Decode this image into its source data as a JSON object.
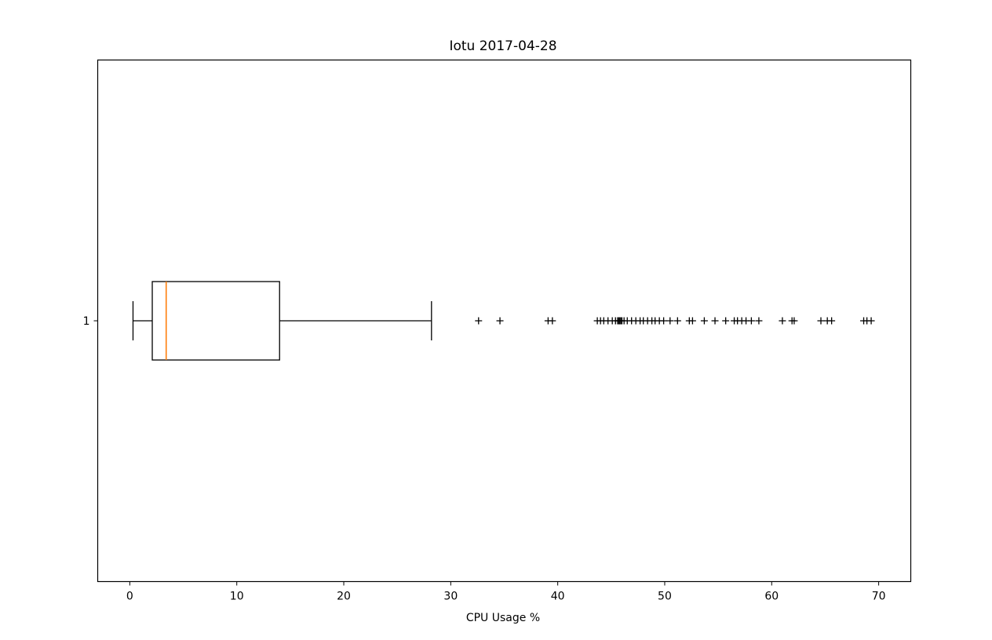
{
  "chart_data": {
    "type": "boxplot",
    "orientation": "horizontal",
    "title": "Iotu 2017-04-28",
    "xlabel": "CPU Usage %",
    "ylabel": "",
    "xlim": [
      -3.0,
      73.0
    ],
    "xticks": [
      0,
      10,
      20,
      30,
      40,
      50,
      60,
      70
    ],
    "xtick_labels": [
      "0",
      "10",
      "20",
      "30",
      "40",
      "50",
      "60",
      "70"
    ],
    "categories": [
      "1"
    ],
    "grid": false,
    "legend": "none",
    "colors": {
      "box": "#000000",
      "median": "#ff7f0e",
      "flier": "#000000"
    },
    "series": [
      {
        "category": "1",
        "whisker_low": 0.3,
        "q1": 2.1,
        "median": 3.4,
        "q3": 14.0,
        "whisker_high": 28.2,
        "outliers": [
          32.6,
          34.6,
          39.1,
          39.5,
          43.7,
          44.0,
          44.3,
          44.7,
          45.1,
          45.4,
          45.6,
          45.7,
          45.8,
          45.9,
          46.0,
          46.2,
          46.5,
          46.9,
          47.3,
          47.7,
          48.0,
          48.4,
          48.8,
          49.1,
          49.5,
          49.9,
          50.5,
          51.2,
          52.3,
          52.6,
          53.7,
          54.7,
          55.7,
          56.5,
          56.8,
          57.2,
          57.6,
          58.1,
          58.8,
          61.0,
          61.9,
          62.1,
          64.6,
          65.2,
          65.6,
          68.6,
          68.9,
          69.3
        ]
      }
    ]
  }
}
